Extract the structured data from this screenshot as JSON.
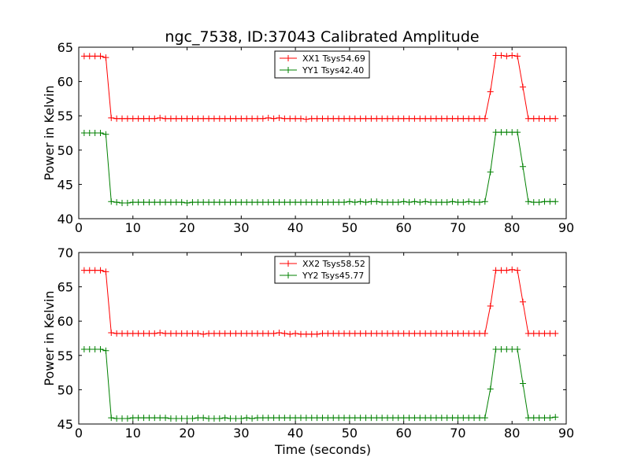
{
  "figure": {
    "title": "ngc_7538, ID:37043 Calibrated Amplitude",
    "xlabel": "Time (seconds)"
  },
  "colors": {
    "xx": "#ff0000",
    "yy": "#008000"
  },
  "chart_data": [
    {
      "type": "line",
      "marker": "plus",
      "ylabel": "Power in Kelvin",
      "xlim": [
        0,
        90
      ],
      "ylim": [
        40,
        65
      ],
      "xticks": [
        "0",
        "10",
        "20",
        "30",
        "40",
        "50",
        "60",
        "70",
        "80",
        "90"
      ],
      "yticks": [
        "40",
        "45",
        "50",
        "55",
        "60",
        "65"
      ],
      "legend_position": "top-center",
      "grid": false,
      "x": [
        1,
        2,
        3,
        4,
        5,
        6,
        7,
        8,
        9,
        10,
        11,
        12,
        13,
        14,
        15,
        16,
        17,
        18,
        19,
        20,
        21,
        22,
        23,
        24,
        25,
        26,
        27,
        28,
        29,
        30,
        31,
        32,
        33,
        34,
        35,
        36,
        37,
        38,
        39,
        40,
        41,
        42,
        43,
        44,
        45,
        46,
        47,
        48,
        49,
        50,
        51,
        52,
        53,
        54,
        55,
        56,
        57,
        58,
        59,
        60,
        61,
        62,
        63,
        64,
        65,
        66,
        67,
        68,
        69,
        70,
        71,
        72,
        73,
        74,
        75,
        76,
        77,
        78,
        79,
        80,
        81,
        82,
        83,
        84,
        85,
        86,
        87,
        88
      ],
      "series": [
        {
          "name": "XX1 Tsys54.69",
          "color": "#ff0000",
          "values": [
            63.7,
            63.7,
            63.7,
            63.7,
            63.5,
            54.7,
            54.6,
            54.6,
            54.6,
            54.6,
            54.6,
            54.6,
            54.6,
            54.6,
            54.7,
            54.6,
            54.6,
            54.6,
            54.6,
            54.6,
            54.6,
            54.6,
            54.6,
            54.6,
            54.6,
            54.6,
            54.6,
            54.6,
            54.6,
            54.6,
            54.6,
            54.6,
            54.6,
            54.6,
            54.7,
            54.6,
            54.7,
            54.6,
            54.6,
            54.6,
            54.6,
            54.5,
            54.6,
            54.6,
            54.6,
            54.6,
            54.6,
            54.6,
            54.6,
            54.6,
            54.6,
            54.6,
            54.6,
            54.6,
            54.6,
            54.6,
            54.6,
            54.6,
            54.6,
            54.6,
            54.6,
            54.6,
            54.6,
            54.6,
            54.6,
            54.6,
            54.6,
            54.6,
            54.6,
            54.6,
            54.6,
            54.6,
            54.6,
            54.6,
            54.6,
            58.5,
            63.8,
            63.8,
            63.7,
            63.8,
            63.7,
            59.2,
            54.6,
            54.6,
            54.6,
            54.6,
            54.6,
            54.6
          ]
        },
        {
          "name": "YY1 Tsys42.40",
          "color": "#008000",
          "values": [
            52.5,
            52.5,
            52.5,
            52.5,
            52.3,
            42.5,
            42.4,
            42.3,
            42.3,
            42.4,
            42.4,
            42.4,
            42.4,
            42.4,
            42.4,
            42.4,
            42.4,
            42.4,
            42.4,
            42.3,
            42.4,
            42.4,
            42.4,
            42.4,
            42.4,
            42.4,
            42.4,
            42.4,
            42.4,
            42.4,
            42.4,
            42.4,
            42.4,
            42.4,
            42.4,
            42.4,
            42.4,
            42.4,
            42.4,
            42.4,
            42.4,
            42.4,
            42.4,
            42.4,
            42.4,
            42.4,
            42.4,
            42.4,
            42.4,
            42.5,
            42.4,
            42.5,
            42.4,
            42.5,
            42.5,
            42.4,
            42.4,
            42.4,
            42.4,
            42.5,
            42.4,
            42.5,
            42.4,
            42.5,
            42.4,
            42.4,
            42.4,
            42.4,
            42.5,
            42.4,
            42.4,
            42.5,
            42.4,
            42.4,
            42.5,
            46.8,
            52.6,
            52.6,
            52.6,
            52.6,
            52.6,
            47.6,
            42.5,
            42.4,
            42.4,
            42.5,
            42.5,
            42.5
          ]
        }
      ]
    },
    {
      "type": "line",
      "marker": "plus",
      "ylabel": "Power in Kelvin",
      "xlabel": "Time (seconds)",
      "xlim": [
        0,
        90
      ],
      "ylim": [
        45,
        70
      ],
      "xticks": [
        "0",
        "10",
        "20",
        "30",
        "40",
        "50",
        "60",
        "70",
        "80",
        "90"
      ],
      "yticks": [
        "45",
        "50",
        "55",
        "60",
        "65",
        "70"
      ],
      "legend_position": "top-center",
      "grid": false,
      "x": [
        1,
        2,
        3,
        4,
        5,
        6,
        7,
        8,
        9,
        10,
        11,
        12,
        13,
        14,
        15,
        16,
        17,
        18,
        19,
        20,
        21,
        22,
        23,
        24,
        25,
        26,
        27,
        28,
        29,
        30,
        31,
        32,
        33,
        34,
        35,
        36,
        37,
        38,
        39,
        40,
        41,
        42,
        43,
        44,
        45,
        46,
        47,
        48,
        49,
        50,
        51,
        52,
        53,
        54,
        55,
        56,
        57,
        58,
        59,
        60,
        61,
        62,
        63,
        64,
        65,
        66,
        67,
        68,
        69,
        70,
        71,
        72,
        73,
        74,
        75,
        76,
        77,
        78,
        79,
        80,
        81,
        82,
        83,
        84,
        85,
        86,
        87,
        88
      ],
      "series": [
        {
          "name": "XX2 Tsys58.52",
          "color": "#ff0000",
          "values": [
            67.4,
            67.4,
            67.4,
            67.4,
            67.2,
            58.3,
            58.2,
            58.2,
            58.2,
            58.2,
            58.2,
            58.2,
            58.2,
            58.2,
            58.3,
            58.2,
            58.2,
            58.2,
            58.2,
            58.2,
            58.2,
            58.2,
            58.1,
            58.2,
            58.2,
            58.2,
            58.2,
            58.2,
            58.2,
            58.2,
            58.2,
            58.2,
            58.2,
            58.2,
            58.2,
            58.2,
            58.3,
            58.2,
            58.1,
            58.2,
            58.1,
            58.1,
            58.1,
            58.1,
            58.2,
            58.2,
            58.2,
            58.2,
            58.2,
            58.2,
            58.2,
            58.2,
            58.2,
            58.2,
            58.2,
            58.2,
            58.2,
            58.2,
            58.2,
            58.2,
            58.2,
            58.2,
            58.2,
            58.2,
            58.2,
            58.2,
            58.2,
            58.2,
            58.2,
            58.2,
            58.2,
            58.2,
            58.2,
            58.2,
            58.2,
            62.2,
            67.4,
            67.4,
            67.4,
            67.5,
            67.4,
            62.8,
            58.2,
            58.2,
            58.2,
            58.2,
            58.2,
            58.2
          ]
        },
        {
          "name": "YY2 Tsys45.77",
          "color": "#008000",
          "values": [
            55.9,
            55.9,
            55.9,
            55.9,
            55.7,
            45.9,
            45.8,
            45.8,
            45.8,
            45.9,
            45.9,
            45.9,
            45.9,
            45.9,
            45.9,
            45.9,
            45.8,
            45.8,
            45.8,
            45.8,
            45.8,
            45.9,
            45.9,
            45.8,
            45.8,
            45.8,
            45.9,
            45.8,
            45.8,
            45.8,
            45.9,
            45.8,
            45.9,
            45.9,
            45.9,
            45.9,
            45.9,
            45.9,
            45.9,
            45.9,
            45.9,
            45.9,
            45.9,
            45.9,
            45.9,
            45.9,
            45.9,
            45.9,
            45.9,
            45.9,
            45.9,
            45.9,
            45.9,
            45.9,
            45.9,
            45.9,
            45.9,
            45.9,
            45.9,
            45.9,
            45.9,
            45.9,
            45.9,
            45.9,
            45.9,
            45.9,
            45.9,
            45.9,
            45.9,
            45.9,
            45.9,
            45.9,
            45.9,
            45.9,
            45.9,
            50.1,
            55.9,
            55.9,
            55.9,
            55.9,
            55.9,
            50.9,
            45.9,
            45.9,
            45.9,
            45.9,
            45.9,
            46.0
          ]
        }
      ]
    }
  ]
}
